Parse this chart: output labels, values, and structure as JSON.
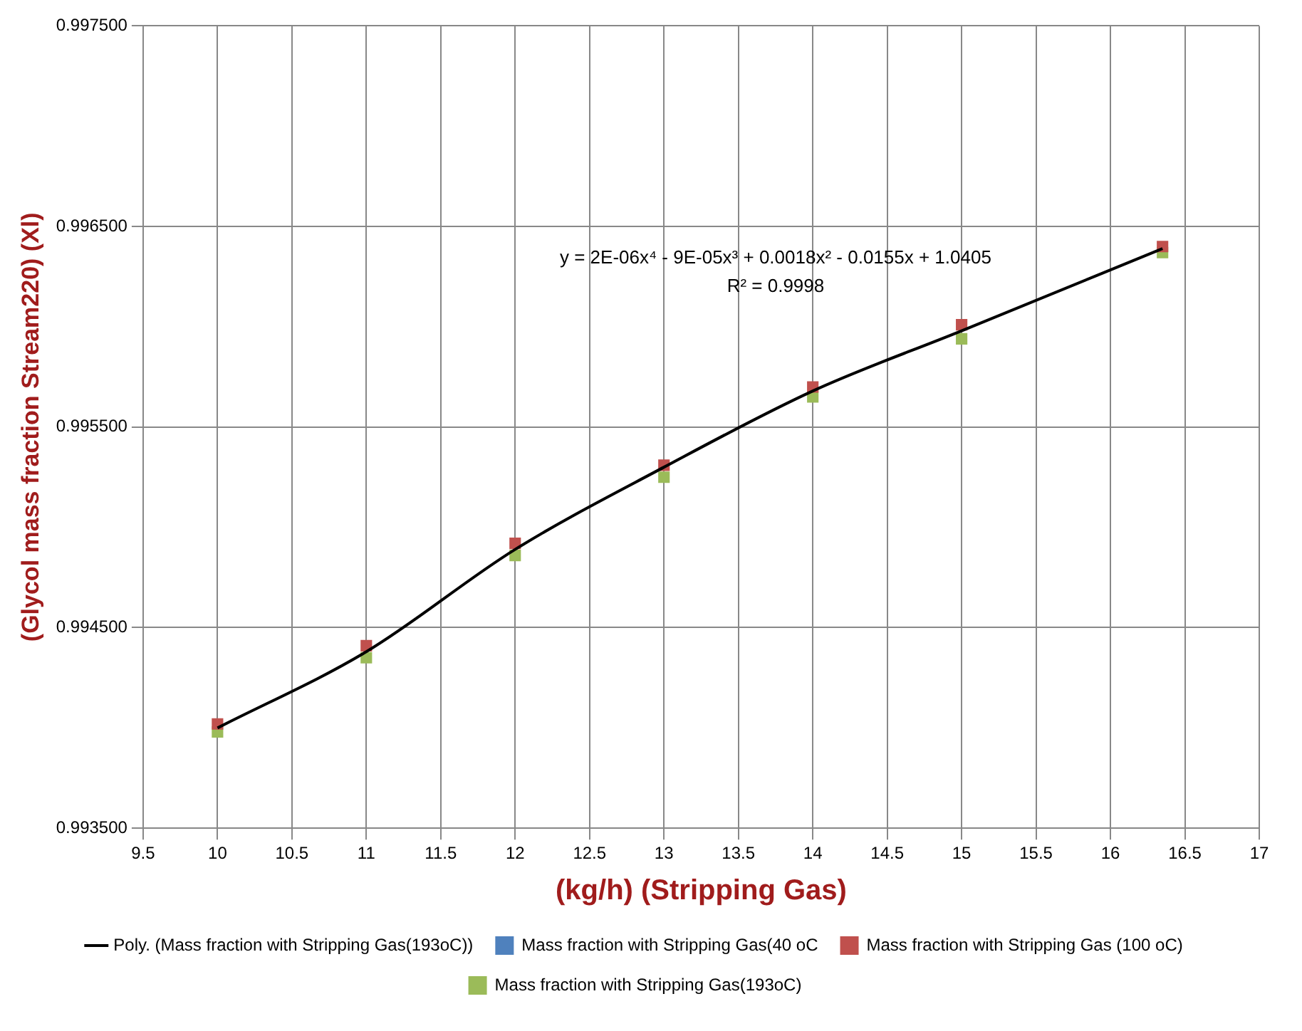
{
  "chart_data": {
    "type": "scatter",
    "xlabel": "(kg/h) (Stripping Gas)",
    "ylabel": "(Glycol mass fraction Stream220) (Xl)",
    "x": [
      10,
      11,
      12,
      13,
      14,
      15,
      16.35
    ],
    "series": [
      {
        "name": "Mass fraction with Stripping Gas(40 oC",
        "color": "#4f81bd",
        "values": [
          null,
          null,
          null,
          null,
          null,
          null,
          null
        ]
      },
      {
        "name": "Mass fraction with Stripping Gas (100 oC)",
        "color": "#c0504d",
        "values": [
          0.99402,
          0.99441,
          0.99492,
          0.99531,
          0.9957,
          0.99601,
          0.9964
        ]
      },
      {
        "name": "Mass fraction with Stripping Gas(193oC)",
        "color": "#9bbb59",
        "values": [
          0.99398,
          0.99435,
          0.99486,
          0.99525,
          0.99565,
          0.99594,
          0.99637
        ]
      },
      {
        "name": "Poly. (Mass fraction with Stripping Gas(193oC))",
        "type": "line",
        "marker": "none",
        "color": "#000000",
        "values": [
          0.994,
          0.99438,
          0.99489,
          0.9953,
          0.99568,
          0.99598,
          0.99639
        ]
      }
    ],
    "xlim": [
      9.5,
      17
    ],
    "xticks": [
      9.5,
      10,
      10.5,
      11,
      11.5,
      12,
      12.5,
      13,
      13.5,
      14,
      14.5,
      15,
      15.5,
      16,
      16.5,
      17
    ],
    "ylim": [
      0.9935,
      0.9975
    ],
    "yticks": [
      {
        "value": 0.9935,
        "label": "0.993500"
      },
      {
        "value": 0.9945,
        "label": "0.994500"
      },
      {
        "value": 0.9955,
        "label": "0.995500"
      },
      {
        "value": 0.9965,
        "label": "0.996500"
      },
      {
        "value": 0.9975,
        "label": "0.997500"
      }
    ],
    "grid": true,
    "legend": "bottom",
    "marker": "square",
    "annotations": [
      "y = 2E-06x⁴ - 9E-05x³ + 0.0018x² - 0.0155x + 1.0405",
      "R² = 0.9998"
    ]
  }
}
